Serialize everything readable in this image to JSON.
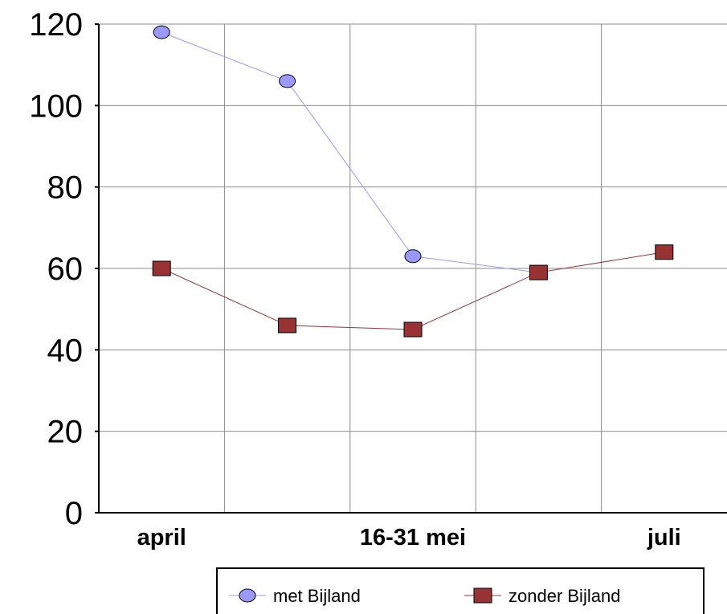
{
  "chart_data": {
    "type": "line",
    "title": "",
    "xlabel": "",
    "ylabel": "",
    "x_positions": 5,
    "x_tick_labels": [
      {
        "index": 0,
        "label": "april"
      },
      {
        "index": 2,
        "label": "16-31 mei"
      },
      {
        "index": 4,
        "label": "juli"
      }
    ],
    "ylim": [
      0,
      120
    ],
    "y_ticks": [
      0,
      20,
      40,
      60,
      80,
      100,
      120
    ],
    "grid": true,
    "legend_position": "bottom",
    "series": [
      {
        "name": "met Bijland",
        "values": [
          118,
          106,
          63,
          59,
          null
        ],
        "color": "#9999ff",
        "marker": "circle"
      },
      {
        "name": "zonder Bijland",
        "values": [
          60,
          46,
          45,
          59,
          64
        ],
        "color": "#993333",
        "marker": "square"
      }
    ]
  }
}
